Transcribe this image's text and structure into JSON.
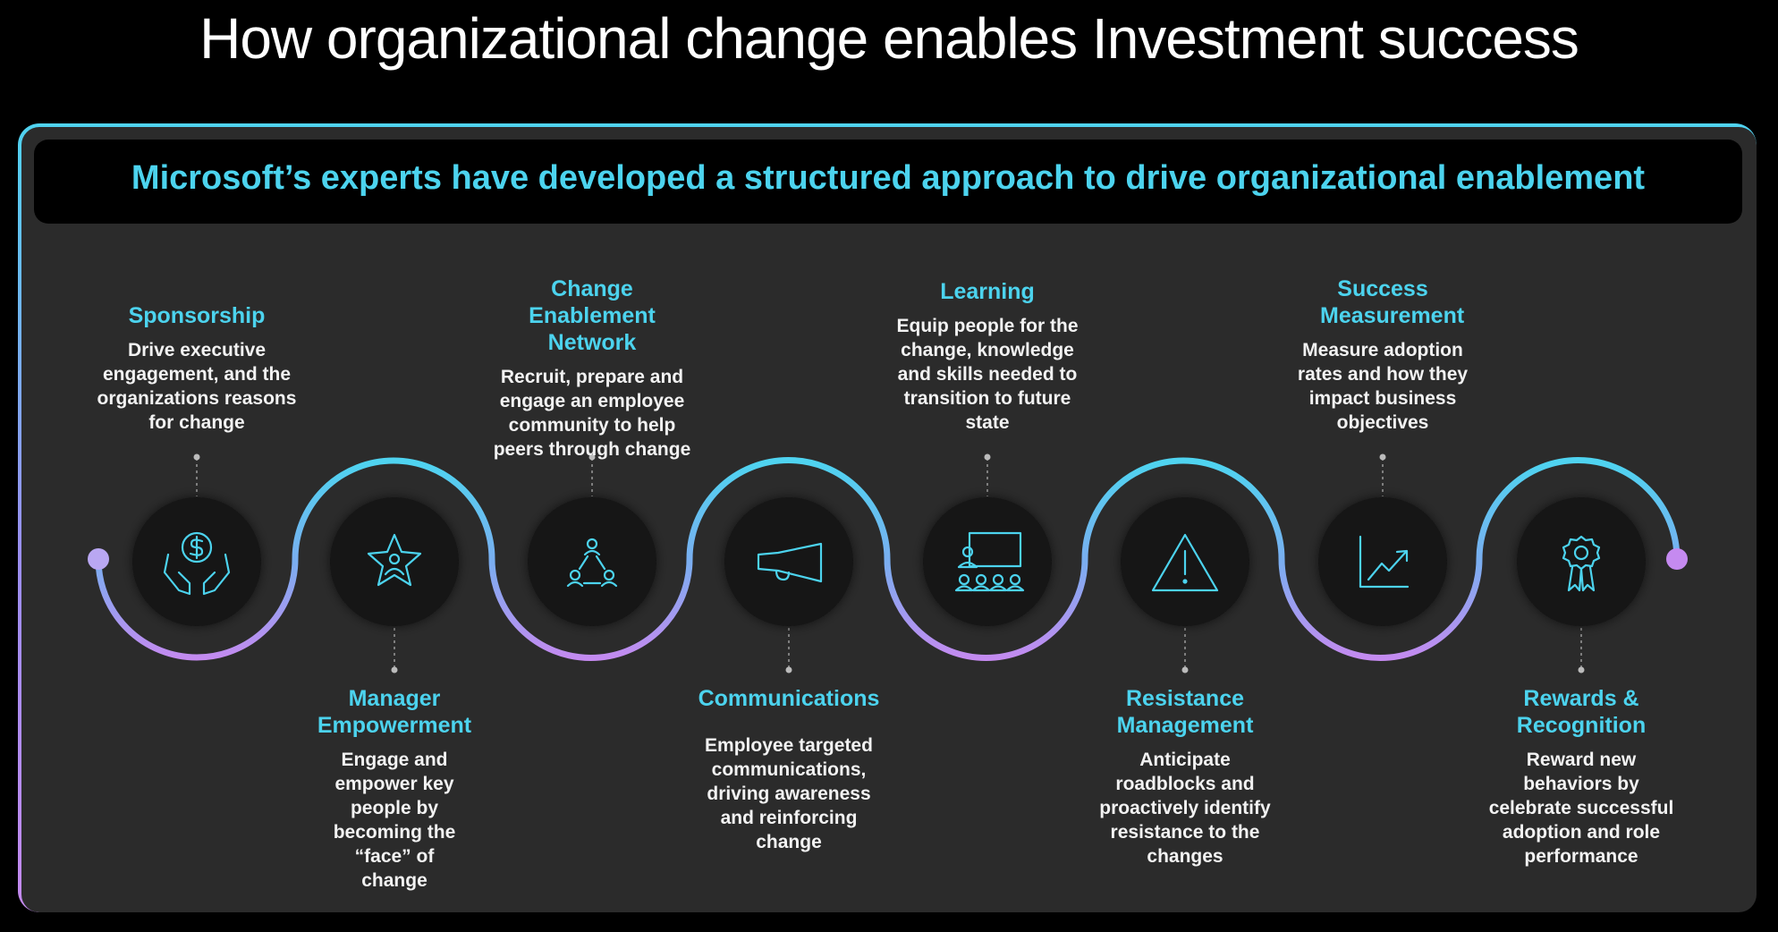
{
  "title": "How organizational change enables Investment success",
  "banner": "Microsoft’s experts have developed a structured approach to drive organizational enablement",
  "colors": {
    "accent": "#4cd3ee",
    "path_start": "#4fd3f0",
    "path_end": "#c58af0",
    "circle": "#141414",
    "panel": "#2b2b2b"
  },
  "steps": [
    {
      "title": "Sponsorship",
      "desc": "Drive executive engagement, and the organizations reasons for change",
      "icon": "hands-dollar-icon"
    },
    {
      "title": "Manager Empowerment",
      "desc": "Engage and empower key people by becoming the “face” of change",
      "icon": "star-person-icon"
    },
    {
      "title": "Change Enablement Network",
      "desc": "Recruit, prepare and engage an employee community to help peers through change",
      "icon": "network-people-icon"
    },
    {
      "title": "Communications",
      "desc": "Employee targeted communications, driving awareness and reinforcing change",
      "icon": "megaphone-icon"
    },
    {
      "title": "Learning",
      "desc": "Equip people for the change, knowledge and skills needed to transition to future state",
      "icon": "classroom-icon"
    },
    {
      "title": "Resistance Management",
      "desc": "Anticipate roadblocks and proactively identify resistance to the changes",
      "icon": "warning-icon"
    },
    {
      "title": "Success Measurement",
      "desc": "Measure adoption rates and how they impact business objectives",
      "icon": "chart-trend-icon"
    },
    {
      "title": "Rewards & Recognition",
      "desc": "Reward new behaviors by celebrate successful adoption and role performance",
      "icon": "award-ribbon-icon"
    }
  ]
}
